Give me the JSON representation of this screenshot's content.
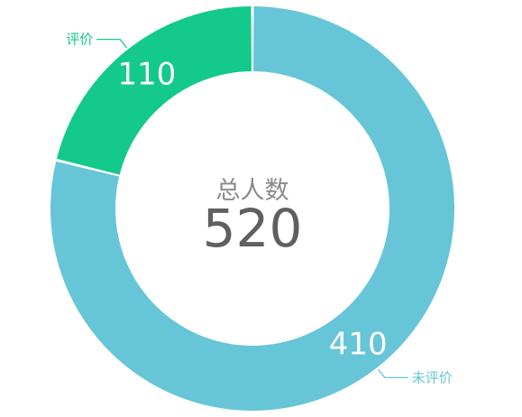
{
  "chart_data": {
    "type": "pie",
    "donut": true,
    "center_title": "总人数",
    "center_value": "520",
    "slices": [
      {
        "label": "评价",
        "value": 110,
        "color": "#13c98b"
      },
      {
        "label": "未评价",
        "value": 410,
        "color": "#67c5d8"
      }
    ]
  }
}
